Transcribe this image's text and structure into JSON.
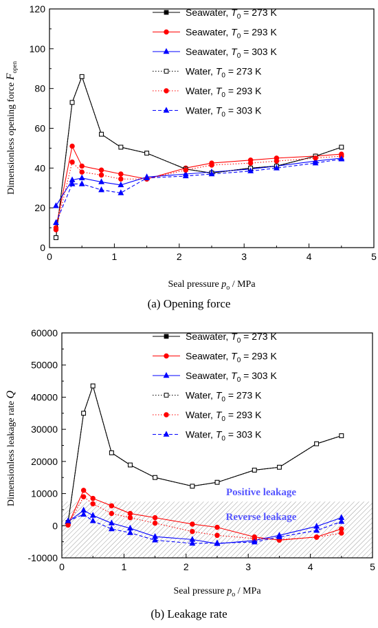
{
  "charts": [
    {
      "caption_letter": "(a)",
      "caption_text": " Opening force",
      "x_tick_labels": [
        "0",
        "1",
        "2",
        "3",
        "4",
        "5"
      ],
      "y_tick_labels": [
        "0",
        "20",
        "40",
        "60",
        "80",
        "100",
        "120"
      ],
      "x_label": {
        "main": "Seal pressure  ",
        "var": "p",
        "sub": "o",
        "rest": "  / MPa"
      },
      "y_label": {
        "main": "Dimensionless opening force  ",
        "var": "F",
        "sub": "open"
      },
      "legend": [
        {
          "label": "Seawater,  ",
          "sym": "T",
          "sub": "0",
          "tail": " = 273 K"
        },
        {
          "label": "Seawater,  ",
          "sym": "T",
          "sub": "0",
          "tail": " = 293 K"
        },
        {
          "label": "Seawater,  ",
          "sym": "T",
          "sub": "0",
          "tail": " = 303 K"
        },
        {
          "label": "Water,  ",
          "sym": "T",
          "sub": "0",
          "tail": " = 273 K"
        },
        {
          "label": "Water,  ",
          "sym": "T",
          "sub": "0",
          "tail": " = 293 K"
        },
        {
          "label": "Water,  ",
          "sym": "T",
          "sub": "0",
          "tail": " = 303 K"
        }
      ]
    },
    {
      "caption_letter": "(b)",
      "caption_text": " Leakage rate",
      "x_tick_labels": [
        "0",
        "1",
        "2",
        "3",
        "4",
        "5"
      ],
      "y_tick_labels": [
        "-10000",
        "0",
        "10000",
        "20000",
        "30000",
        "40000",
        "50000",
        "60000"
      ],
      "x_label": {
        "main": "Seal pressure  ",
        "var": "p",
        "sub": "o",
        "rest": "  / MPa"
      },
      "y_label": {
        "main": "Dimensionless leakage rate  ",
        "var": "Q",
        "sub": ""
      },
      "annotations": [
        "Positive leakage",
        "Reverse leakage"
      ],
      "legend": [
        {
          "label": "Seawater,  ",
          "sym": "T",
          "sub": "0",
          "tail": " = 273 K"
        },
        {
          "label": "Seawater,  ",
          "sym": "T",
          "sub": "0",
          "tail": " = 293 K"
        },
        {
          "label": "Seawater,  ",
          "sym": "T",
          "sub": "0",
          "tail": " = 303 K"
        },
        {
          "label": "Water,  ",
          "sym": "T",
          "sub": "0",
          "tail": " = 273 K"
        },
        {
          "label": "Water,  ",
          "sym": "T",
          "sub": "0",
          "tail": " = 293 K"
        },
        {
          "label": "Water,  ",
          "sym": "T",
          "sub": "0",
          "tail": " = 303 K"
        }
      ]
    }
  ],
  "chart_data": [
    {
      "type": "line",
      "xlim": [
        0,
        5
      ],
      "ylim": [
        0,
        120
      ],
      "grid": false,
      "legend_position": "top-right",
      "series": [
        {
          "name": "Seawater, T0 = 273 K",
          "color": "#000000",
          "marker": "square",
          "filled": true,
          "dash": "solid",
          "x": [
            0.1,
            0.35,
            0.5,
            0.8,
            1.1,
            1.5,
            2.1,
            2.5,
            3.1,
            3.5,
            4.1,
            4.5
          ],
          "y": [
            5,
            73,
            86,
            57,
            50.5,
            47.5,
            39.5,
            37.5,
            40,
            41,
            46,
            50.5
          ]
        },
        {
          "name": "Seawater, T0 = 293 K",
          "color": "#ff0000",
          "marker": "circle",
          "filled": true,
          "dash": "solid",
          "x": [
            0.1,
            0.35,
            0.5,
            0.8,
            1.1,
            1.5,
            2.1,
            2.5,
            3.1,
            3.5,
            4.1,
            4.5
          ],
          "y": [
            10,
            51,
            41,
            39,
            37,
            34.5,
            40,
            42.5,
            44,
            45,
            46,
            47
          ]
        },
        {
          "name": "Seawater, T0 = 303 K",
          "color": "#0000ff",
          "marker": "triangle",
          "filled": true,
          "dash": "solid",
          "x": [
            0.1,
            0.35,
            0.5,
            0.8,
            1.1,
            1.5,
            2.1,
            2.5,
            3.1,
            3.5,
            4.1,
            4.5
          ],
          "y": [
            21,
            34,
            35,
            33,
            31.5,
            35.5,
            37,
            38,
            39.5,
            41,
            43.5,
            45
          ]
        },
        {
          "name": "Water, T0 = 273 K",
          "color": "#000000",
          "marker": "square",
          "filled": false,
          "dash": "dot",
          "x": [
            0.1,
            0.35,
            0.5,
            0.8,
            1.1,
            1.5,
            2.1,
            2.5,
            3.1,
            3.5,
            4.1,
            4.5
          ],
          "y": [
            5,
            73,
            86,
            57,
            50.5,
            47.5,
            39.5,
            37.5,
            40,
            41,
            46,
            50.5
          ]
        },
        {
          "name": "Water, T0 = 293 K",
          "color": "#ff0000",
          "marker": "circle",
          "filled": true,
          "dash": "dot",
          "x": [
            0.1,
            0.35,
            0.5,
            0.8,
            1.1,
            1.5,
            2.1,
            2.5,
            3.1,
            3.5,
            4.1,
            4.5
          ],
          "y": [
            9,
            43,
            38,
            36.5,
            34.5,
            34.5,
            39,
            41.5,
            42.5,
            43.5,
            45,
            46
          ]
        },
        {
          "name": "Water, T0 = 303 K",
          "color": "#0000ff",
          "marker": "triangle",
          "filled": true,
          "dash": "dash",
          "x": [
            0.1,
            0.35,
            0.5,
            0.8,
            1.1,
            1.5,
            2.1,
            2.5,
            3.1,
            3.5,
            4.1,
            4.5
          ],
          "y": [
            12.5,
            32,
            32,
            29,
            27.5,
            35,
            36,
            37,
            38.5,
            40,
            42.5,
            44.5
          ]
        }
      ]
    },
    {
      "type": "line",
      "xlim": [
        0,
        5
      ],
      "ylim": [
        -10000,
        60000
      ],
      "grid": false,
      "legend_position": "top-right",
      "shaded_region_y": [
        -10000,
        7500
      ],
      "series": [
        {
          "name": "Seawater, T0 = 273 K",
          "color": "#000000",
          "marker": "square",
          "filled": true,
          "dash": "solid",
          "x": [
            0.1,
            0.35,
            0.5,
            0.8,
            1.1,
            1.5,
            2.1,
            2.5,
            3.1,
            3.5,
            4.1,
            4.5
          ],
          "y": [
            1000,
            35000,
            43500,
            22700,
            18900,
            15000,
            12300,
            13500,
            17300,
            18200,
            25500,
            28000
          ]
        },
        {
          "name": "Seawater, T0 = 293 K",
          "color": "#ff0000",
          "marker": "circle",
          "filled": true,
          "dash": "solid",
          "x": [
            0.1,
            0.35,
            0.5,
            0.8,
            1.1,
            1.5,
            2.1,
            2.5,
            3.1,
            3.5,
            4.1,
            4.5
          ],
          "y": [
            300,
            11000,
            8500,
            6200,
            3800,
            2500,
            500,
            -500,
            -3500,
            -4500,
            -3500,
            -1000
          ]
        },
        {
          "name": "Seawater, T0 = 303 K",
          "color": "#0000ff",
          "marker": "triangle",
          "filled": true,
          "dash": "solid",
          "x": [
            0.1,
            0.35,
            0.5,
            0.8,
            1.1,
            1.5,
            2.1,
            2.5,
            3.1,
            3.5,
            4.1,
            4.5
          ],
          "y": [
            1200,
            4800,
            3200,
            800,
            -800,
            -3400,
            -4300,
            -5600,
            -4600,
            -3000,
            -200,
            2500
          ]
        },
        {
          "name": "Water, T0 = 273 K",
          "color": "#000000",
          "marker": "square",
          "filled": false,
          "dash": "dot",
          "x": [
            0.1,
            0.35,
            0.5,
            0.8,
            1.1,
            1.5,
            2.1,
            2.5,
            3.1,
            3.5,
            4.1,
            4.5
          ],
          "y": [
            1000,
            35000,
            43500,
            22700,
            18900,
            15000,
            12300,
            13500,
            17300,
            18200,
            25500,
            28000
          ]
        },
        {
          "name": "Water, T0 = 293 K",
          "color": "#ff0000",
          "marker": "circle",
          "filled": true,
          "dash": "dot",
          "x": [
            0.1,
            0.35,
            0.5,
            0.8,
            1.1,
            1.5,
            2.1,
            2.5,
            3.1,
            3.5,
            4.1,
            4.5
          ],
          "y": [
            200,
            9000,
            6800,
            3800,
            2500,
            800,
            -1800,
            -3000,
            -4000,
            -4300,
            -3600,
            -2300
          ]
        },
        {
          "name": "Water, T0 = 303 K",
          "color": "#0000ff",
          "marker": "triangle",
          "filled": true,
          "dash": "dash",
          "x": [
            0.1,
            0.35,
            0.5,
            0.8,
            1.1,
            1.5,
            2.1,
            2.5,
            3.1,
            3.5,
            4.1,
            4.5
          ],
          "y": [
            1500,
            3500,
            1500,
            -1000,
            -2200,
            -4500,
            -5500,
            -5400,
            -5100,
            -3500,
            -1500,
            1300
          ]
        }
      ]
    }
  ]
}
